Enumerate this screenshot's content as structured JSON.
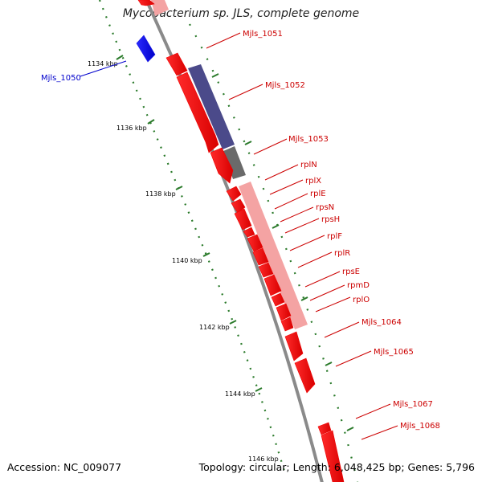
{
  "header": {
    "title": "Mycobacterium sp. JLS, complete genome"
  },
  "footer": {
    "accession": "Accession: NC_009077",
    "topology": "Topology: circular; Length: 6,048,425 bp; Genes: 5,796"
  },
  "colors": {
    "backbone": "#8a8a8a",
    "ruler": "#2a7a2a",
    "gene_forward": "#ee0000",
    "gene_reverse": "#1a1ae6",
    "label_forward": "#cc0000",
    "label_reverse": "#0000cc",
    "feature_purple": "#4b4a8a",
    "feature_gray": "#6a6a6a",
    "feature_pink": "#f4a3a3"
  },
  "ruler_ticks": [
    {
      "label": "1134 kbp"
    },
    {
      "label": "1136 kbp"
    },
    {
      "label": "1138 kbp"
    },
    {
      "label": "1140 kbp"
    },
    {
      "label": "1142 kbp"
    },
    {
      "label": "1144 kbp"
    },
    {
      "label": "1146 kbp"
    }
  ],
  "genes": [
    {
      "label": "Mjls_1050",
      "strand": "reverse"
    },
    {
      "label": "Mjls_1051",
      "strand": "forward"
    },
    {
      "label": "Mjls_1052",
      "strand": "forward"
    },
    {
      "label": "Mjls_1053",
      "strand": "forward"
    },
    {
      "label": "rplN",
      "strand": "forward"
    },
    {
      "label": "rplX",
      "strand": "forward"
    },
    {
      "label": "rplE",
      "strand": "forward"
    },
    {
      "label": "rpsN",
      "strand": "forward"
    },
    {
      "label": "rpsH",
      "strand": "forward"
    },
    {
      "label": "rplF",
      "strand": "forward"
    },
    {
      "label": "rplR",
      "strand": "forward"
    },
    {
      "label": "rpsE",
      "strand": "forward"
    },
    {
      "label": "rpmD",
      "strand": "forward"
    },
    {
      "label": "rplO",
      "strand": "forward"
    },
    {
      "label": "Mjls_1064",
      "strand": "forward"
    },
    {
      "label": "Mjls_1065",
      "strand": "forward"
    },
    {
      "label": "Mjls_1067",
      "strand": "forward"
    },
    {
      "label": "Mjls_1068",
      "strand": "forward"
    }
  ]
}
